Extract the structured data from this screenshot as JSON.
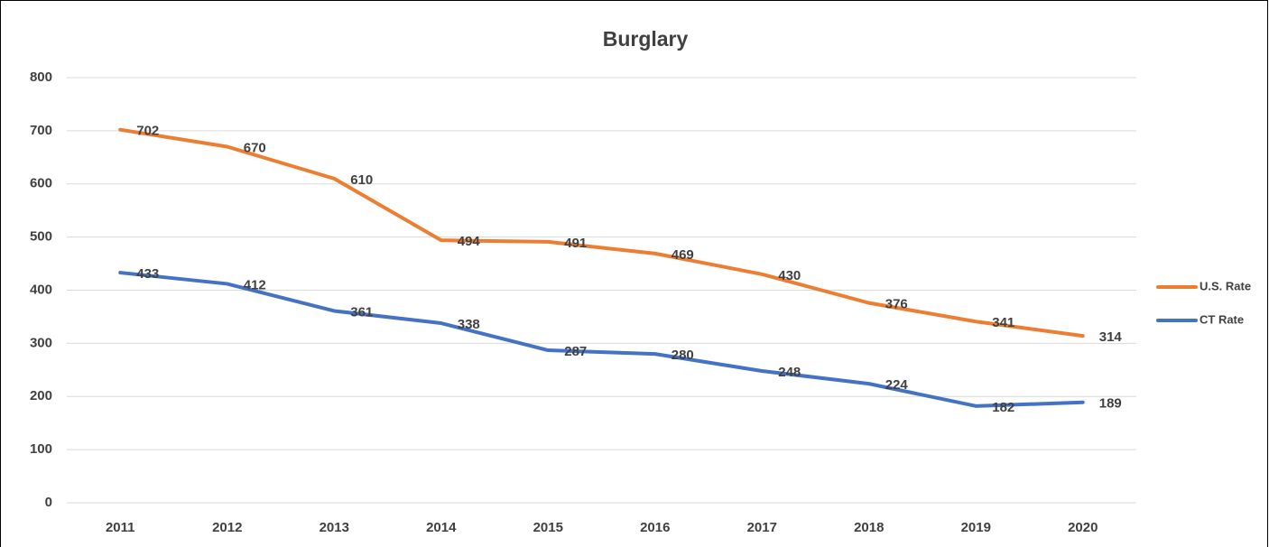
{
  "chart_data": {
    "type": "line",
    "title": "Burglary",
    "categories": [
      "2011",
      "2012",
      "2013",
      "2014",
      "2015",
      "2016",
      "2017",
      "2018",
      "2019",
      "2020"
    ],
    "series": [
      {
        "name": "U.S. Rate",
        "color": "#ed7d31",
        "values": [
          702,
          670,
          610,
          494,
          491,
          469,
          430,
          376,
          341,
          314
        ]
      },
      {
        "name": "CT Rate",
        "color": "#4472c4",
        "values": [
          433,
          412,
          361,
          338,
          287,
          280,
          248,
          224,
          182,
          189
        ]
      }
    ],
    "ylim": [
      0,
      800
    ],
    "yticks": [
      0,
      100,
      200,
      300,
      400,
      500,
      600,
      700,
      800
    ],
    "grid": true,
    "legend": "right"
  }
}
